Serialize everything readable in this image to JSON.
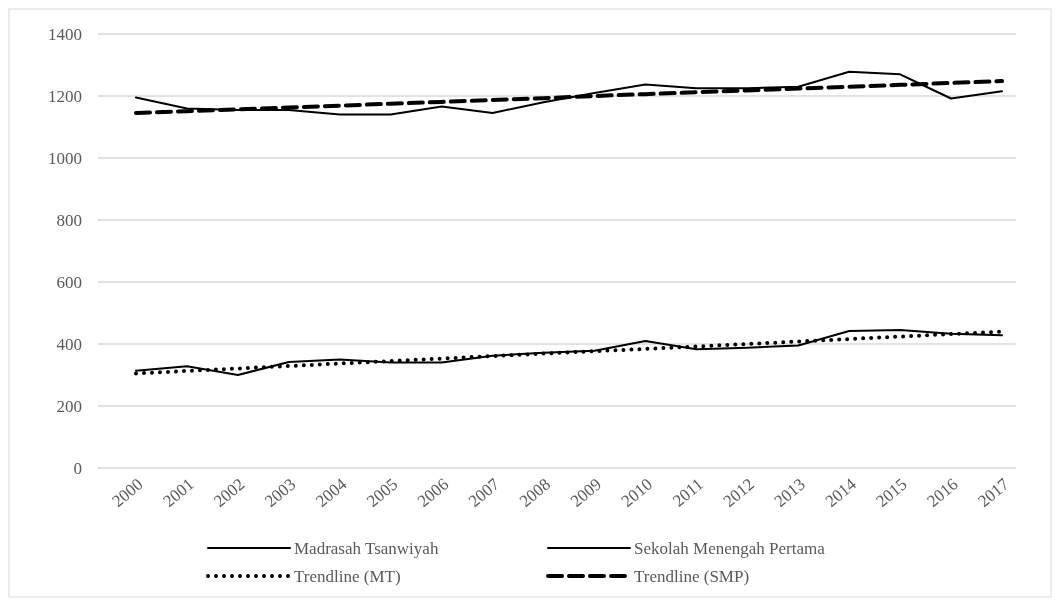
{
  "chart_data": {
    "type": "line",
    "categories": [
      "2000",
      "2001",
      "2002",
      "2003",
      "2004",
      "2005",
      "2006",
      "2007",
      "2008",
      "2009",
      "2010",
      "2011",
      "2012",
      "2013",
      "2014",
      "2015",
      "2016",
      "2017"
    ],
    "series": [
      {
        "name": "Madrasah Tsanwiyah",
        "color": "#000000",
        "line_style": "solid",
        "values": [
          314,
          328,
          300,
          342,
          350,
          340,
          340,
          362,
          372,
          378,
          410,
          383,
          388,
          395,
          442,
          445,
          433,
          428
        ]
      },
      {
        "name": "Sekolah Menengah Pertama",
        "color": "#000000",
        "line_style": "solid",
        "values": [
          1195,
          1160,
          1155,
          1155,
          1140,
          1140,
          1166,
          1145,
          1180,
          1210,
          1237,
          1225,
          1225,
          1230,
          1278,
          1270,
          1192,
          1215
        ]
      },
      {
        "name": "Trendline (MT)",
        "color": "#000000",
        "line_style": "dotted",
        "values": [
          305,
          313,
          321,
          329,
          337,
          345,
          353,
          361,
          369,
          377,
          384,
          392,
          400,
          408,
          416,
          424,
          432,
          440
        ]
      },
      {
        "name": "Trendline (SMP)",
        "color": "#000000",
        "line_style": "dashed",
        "values": [
          1145,
          1151,
          1157,
          1163,
          1169,
          1175,
          1181,
          1187,
          1193,
          1200,
          1206,
          1212,
          1218,
          1224,
          1230,
          1236,
          1242,
          1248
        ]
      }
    ],
    "ylim": [
      0,
      1400
    ],
    "yticks": [
      0,
      200,
      400,
      600,
      800,
      1000,
      1200,
      1400
    ],
    "grid": "y",
    "legend": "bottom"
  }
}
